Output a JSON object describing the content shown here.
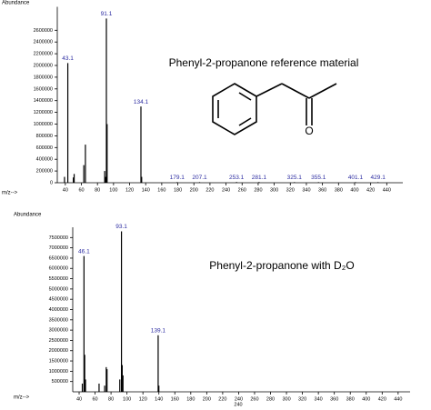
{
  "chart_data": [
    {
      "type": "spectrum",
      "title": "Phenyl-2-propanone reference material",
      "ylabel": "Abundance",
      "xlabel": "m/z-->",
      "structure_label": "O",
      "xlim": [
        30,
        460
      ],
      "ylim": [
        0,
        3000000
      ],
      "xticks": [
        40,
        60,
        80,
        100,
        120,
        140,
        160,
        180,
        200,
        220,
        240,
        260,
        280,
        300,
        320,
        340,
        360,
        380,
        400,
        420,
        440
      ],
      "yticks": [
        0,
        200000,
        400000,
        600000,
        800000,
        1000000,
        1200000,
        1400000,
        1600000,
        1800000,
        2000000,
        2200000,
        2400000,
        2600000
      ],
      "color": "#000000",
      "peaks": {
        "x": [
          43.1,
          91.1,
          134.1,
          179.1,
          207.1,
          253.1,
          281.1,
          325.1,
          355.1,
          401.1,
          429.1
        ],
        "values": [
          2040000,
          2800000,
          1300000,
          10000,
          10000,
          12000,
          12000,
          10000,
          10000,
          10000,
          10000
        ]
      },
      "minor_peaks": {
        "x": [
          39,
          50,
          51,
          63,
          65,
          89,
          90,
          92,
          135
        ],
        "values": [
          100000,
          90000,
          150000,
          300000,
          650000,
          200000,
          100000,
          1000000,
          100000
        ]
      }
    },
    {
      "type": "spectrum",
      "title": "Phenyl-2-propanone with D₂O",
      "ylabel": "Abundance",
      "xlabel": "m/z-->",
      "xaxis_note": 240,
      "xlim": [
        32,
        455
      ],
      "ylim": [
        0,
        8000000
      ],
      "xticks": [
        40,
        60,
        80,
        100,
        120,
        140,
        160,
        180,
        200,
        220,
        240,
        260,
        280,
        300,
        320,
        340,
        360,
        380,
        400,
        420,
        440
      ],
      "yticks": [
        500000,
        1000000,
        1500000,
        2000000,
        2500000,
        3000000,
        3500000,
        4000000,
        4500000,
        5000000,
        5500000,
        6000000,
        6500000,
        7000000,
        7500000
      ],
      "color": "#000000",
      "peaks": {
        "x": [
          46.1,
          93.1,
          139.1
        ],
        "values": [
          6600000,
          7800000,
          2750000
        ]
      },
      "minor_peaks": {
        "x": [
          44,
          47,
          48,
          65,
          72,
          74,
          75,
          91,
          94,
          95,
          140
        ],
        "values": [
          400000,
          1800000,
          600000,
          400000,
          300000,
          1200000,
          1100000,
          600000,
          1300000,
          800000,
          300000
        ]
      }
    }
  ]
}
